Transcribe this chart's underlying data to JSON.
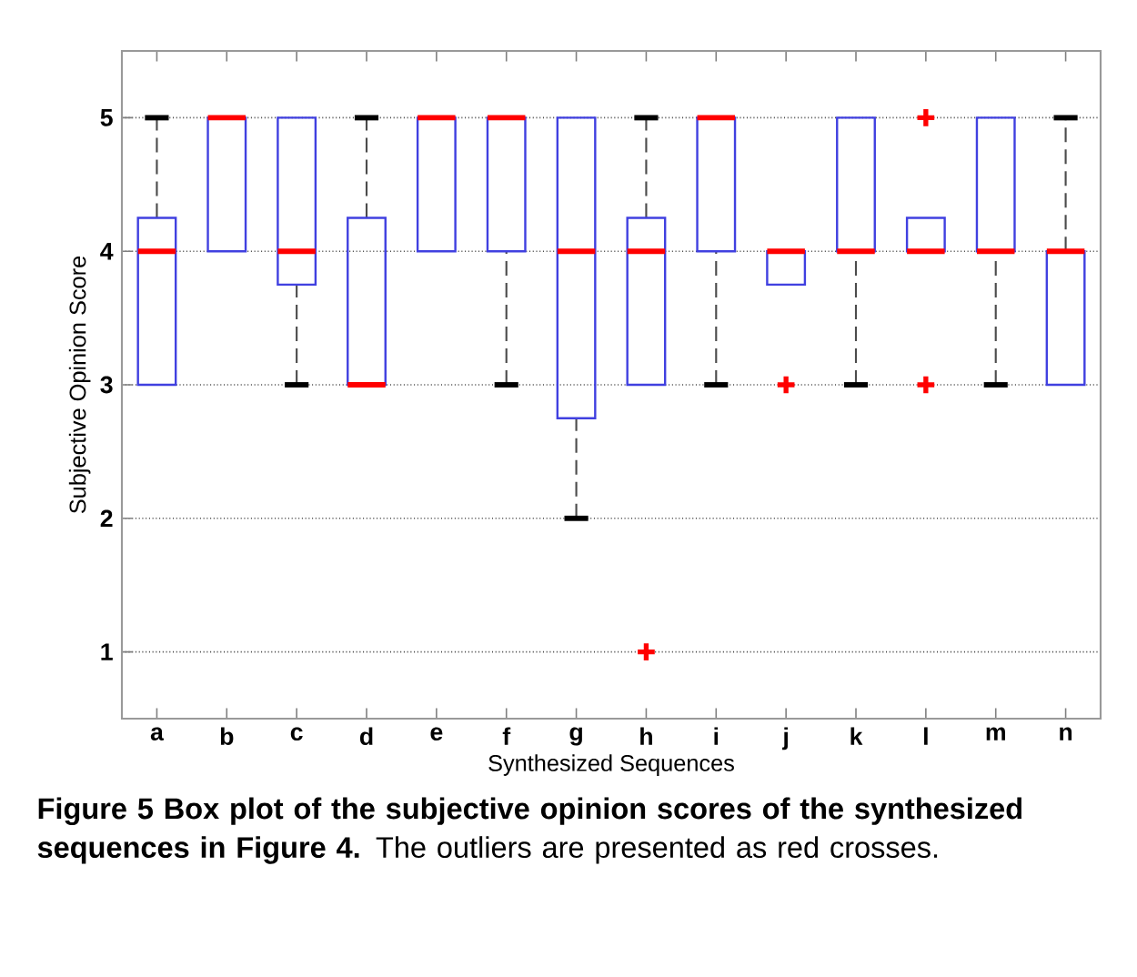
{
  "chart_data": {
    "type": "box",
    "xlabel": "Synthesized Sequences",
    "ylabel": "Subjective Opinion Score",
    "categories": [
      "a",
      "b",
      "c",
      "d",
      "e",
      "f",
      "g",
      "h",
      "i",
      "j",
      "k",
      "l",
      "m",
      "n"
    ],
    "color": "#4040e0",
    "boxes": [
      {
        "low": 3,
        "q1": 3,
        "median": 4,
        "q3": 4.25,
        "high": 5
      },
      {
        "low": 4,
        "q1": 4,
        "median": 5,
        "q3": 5,
        "high": 5
      },
      {
        "low": 3,
        "q1": 3.75,
        "median": 4,
        "q3": 5,
        "high": 5
      },
      {
        "low": 3,
        "q1": 3,
        "median": 3,
        "q3": 4.25,
        "high": 5
      },
      {
        "low": 4,
        "q1": 4,
        "median": 5,
        "q3": 5,
        "high": 5
      },
      {
        "low": 3,
        "q1": 4,
        "median": 5,
        "q3": 5,
        "high": 5
      },
      {
        "low": 2,
        "q1": 2.75,
        "median": 4,
        "q3": 5,
        "high": 5
      },
      {
        "low": 3,
        "q1": 3,
        "median": 4,
        "q3": 4.25,
        "high": 5,
        "outliers": [
          1
        ]
      },
      {
        "low": 3,
        "q1": 4,
        "median": 5,
        "q3": 5,
        "high": 5
      },
      {
        "low": 3.75,
        "q1": 3.75,
        "median": 4,
        "q3": 4,
        "high": 4,
        "outliers": [
          3
        ]
      },
      {
        "low": 3,
        "q1": 4,
        "median": 4,
        "q3": 5,
        "high": 5
      },
      {
        "low": 4,
        "q1": 4,
        "median": 4,
        "q3": 4.25,
        "high": 4.25,
        "outliers": [
          3,
          5
        ]
      },
      {
        "low": 3,
        "q1": 4,
        "median": 4,
        "q3": 5,
        "high": 5
      },
      {
        "low": 3,
        "q1": 3,
        "median": 4,
        "q3": 4,
        "high": 5
      }
    ],
    "ylim": [
      0.5,
      5.5
    ],
    "yticks": [
      1,
      2,
      3,
      4,
      5
    ],
    "grid": "y",
    "annotations": [
      "**Figure 5 Box plot of the subjective opinion scores of the synthesized sequences in Figure 4.** The outliers are presented as red crosses."
    ]
  }
}
